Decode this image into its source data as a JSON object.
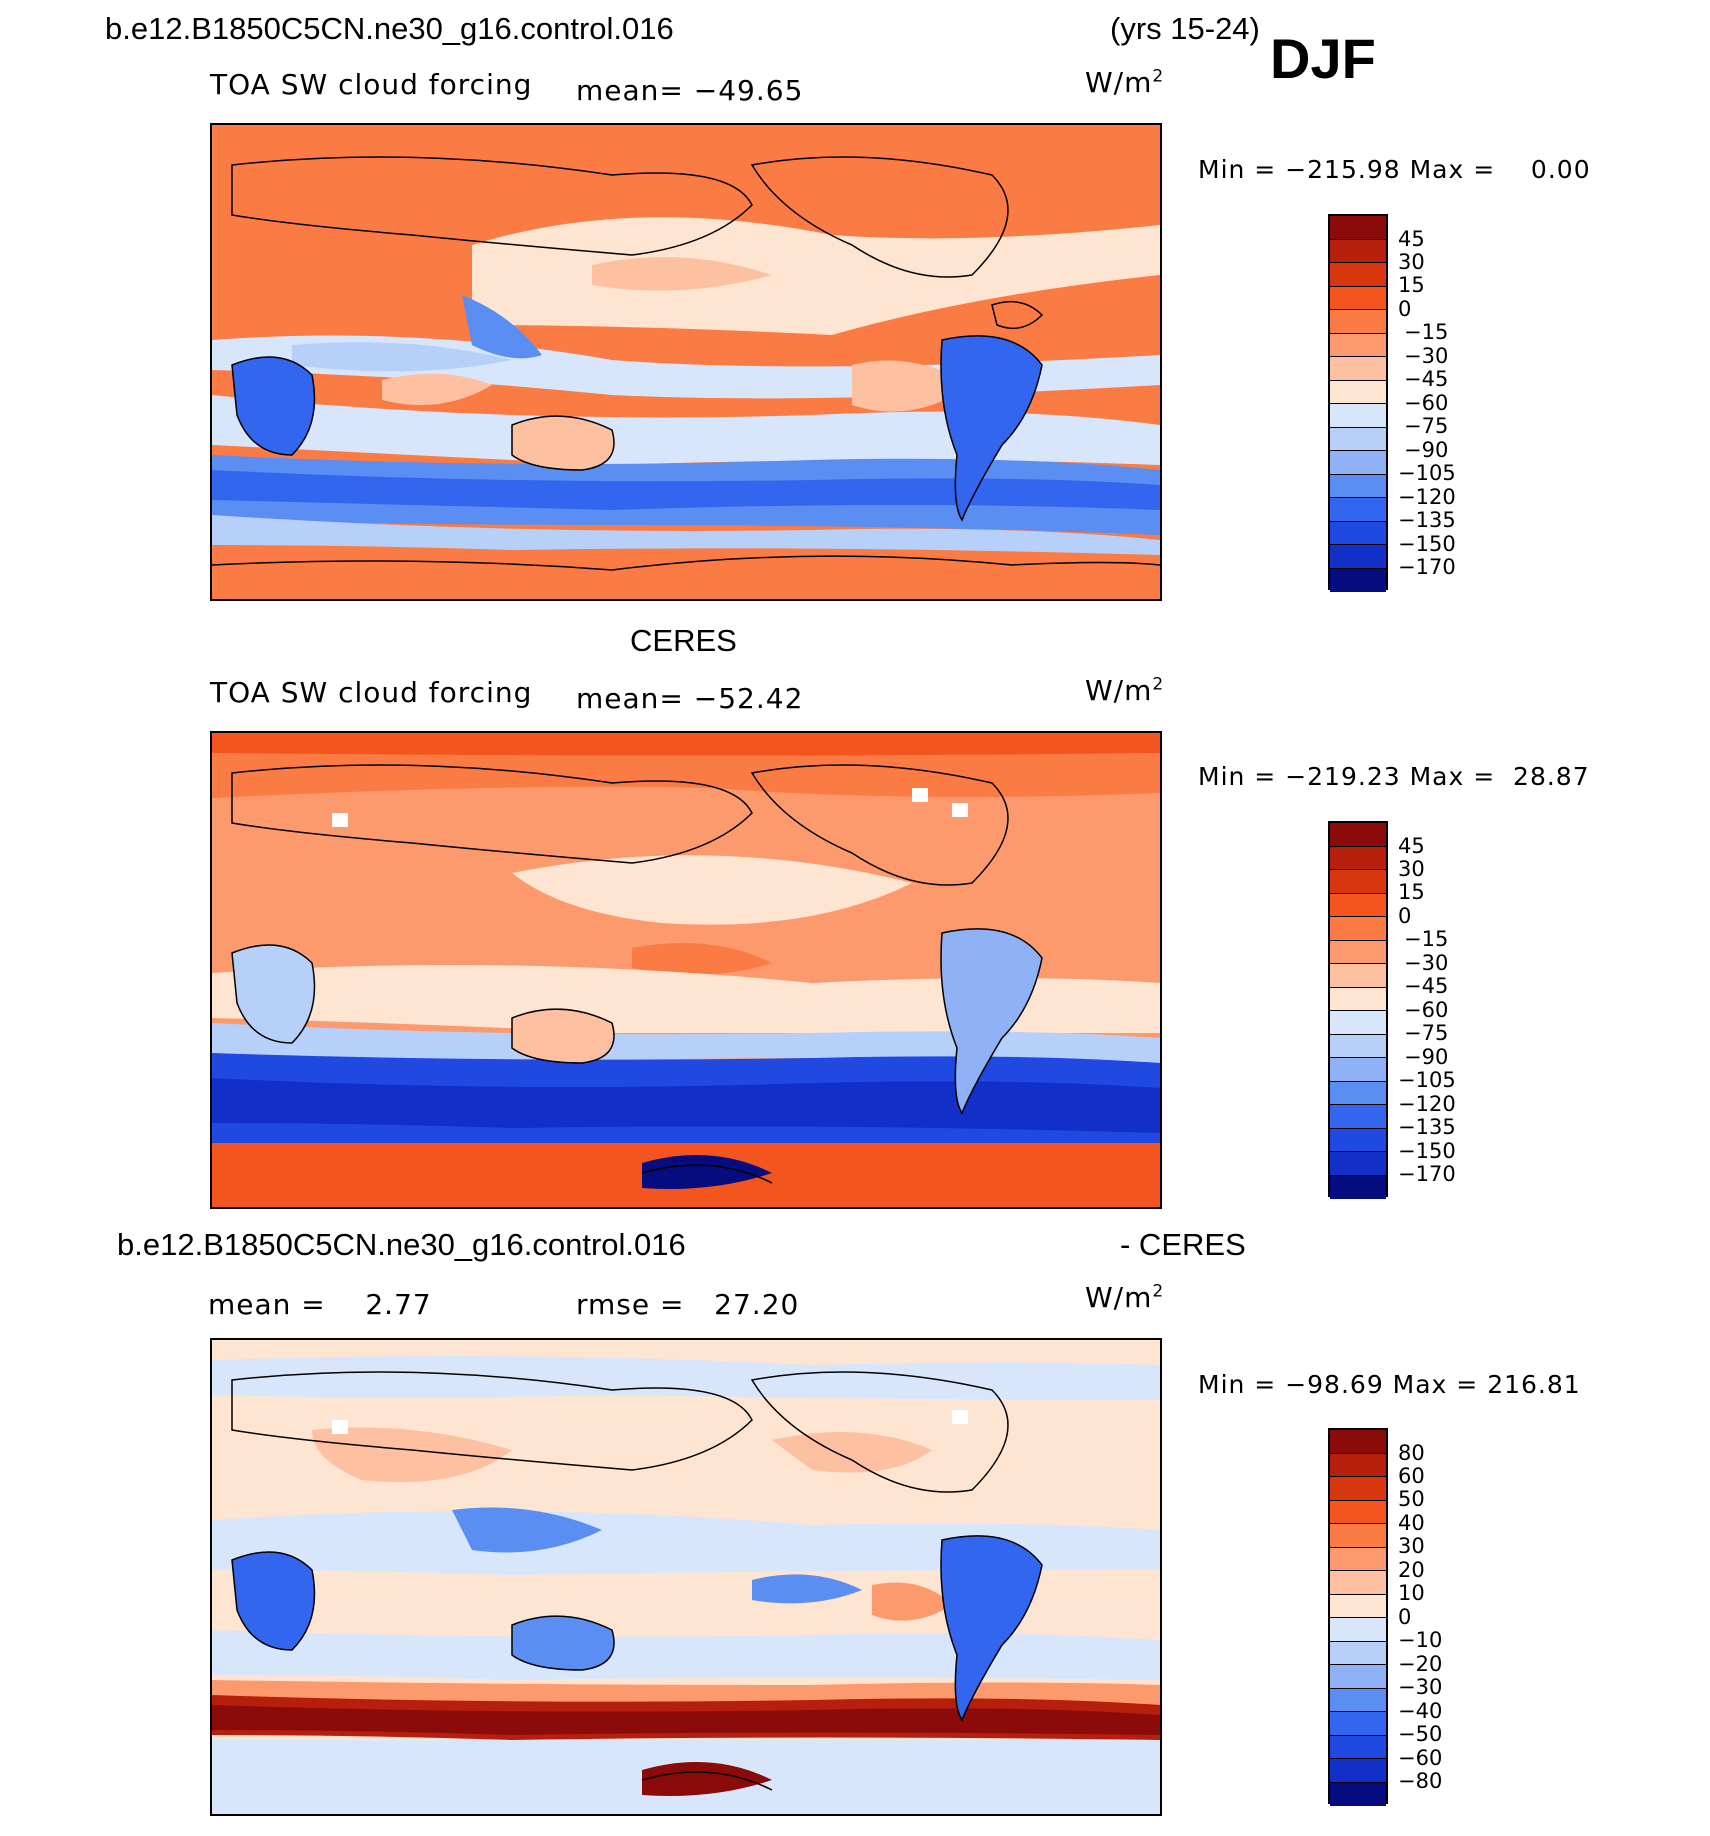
{
  "header": {
    "case_name": "b.e12.B1850C5CN.ne30_g16.control.016",
    "years": "(yrs 15-24)",
    "season": "DJF"
  },
  "panels": [
    {
      "variable": "TOA SW cloud forcing",
      "mean_text": "mean= −49.65",
      "units": "W/m",
      "units_exp": "2",
      "minmax": "Min = −215.98 Max =    0.00",
      "bg": "#fb7b44"
    },
    {
      "title": "CERES",
      "variable": "TOA SW cloud forcing",
      "mean_text": "mean= −52.42",
      "units": "W/m",
      "units_exp": "2",
      "minmax": "Min = −219.23 Max =  28.87",
      "bg": "#fc9a6e"
    },
    {
      "title_left": "b.e12.B1850C5CN.ne30_g16.control.016",
      "title_right": "- CERES",
      "mean_text": "mean =    2.77",
      "rmse_text": "rmse =   27.20",
      "units": "W/m",
      "units_exp": "2",
      "minmax": "Min = −98.69 Max = 216.81",
      "bg": "#fde2d0"
    }
  ],
  "colorbar_main": {
    "colors": [
      "#8b0a0a",
      "#b51f0c",
      "#d8360f",
      "#f4541d",
      "#fb7b44",
      "#fc9a6e",
      "#fdc0a0",
      "#fde5d2",
      "#d8e6fb",
      "#b7d0fa",
      "#8fb1f6",
      "#5a8ef2",
      "#3366ee",
      "#1f49e0",
      "#1230c8",
      "#0a1ba6",
      "#050c80"
    ],
    "labels": [
      "45",
      "30",
      "15",
      "0",
      "−15",
      "−30",
      "−45",
      "−60",
      "−75",
      "−90",
      "−105",
      "−120",
      "−135",
      "−150",
      "−170"
    ]
  },
  "colorbar_diff": {
    "colors": [
      "#8b0a0a",
      "#b51f0c",
      "#d8360f",
      "#f4541d",
      "#fb7b44",
      "#fc9a6e",
      "#fdc0a0",
      "#fde5d2",
      "#d8e6fb",
      "#b7d0fa",
      "#8fb1f6",
      "#5a8ef2",
      "#3366ee",
      "#1f49e0",
      "#1230c8",
      "#0a1ba6",
      "#050c80"
    ],
    "labels": [
      "80",
      "60",
      "50",
      "40",
      "30",
      "20",
      "10",
      "0",
      "−10",
      "−20",
      "−30",
      "−40",
      "−50",
      "−60",
      "−80"
    ]
  }
}
